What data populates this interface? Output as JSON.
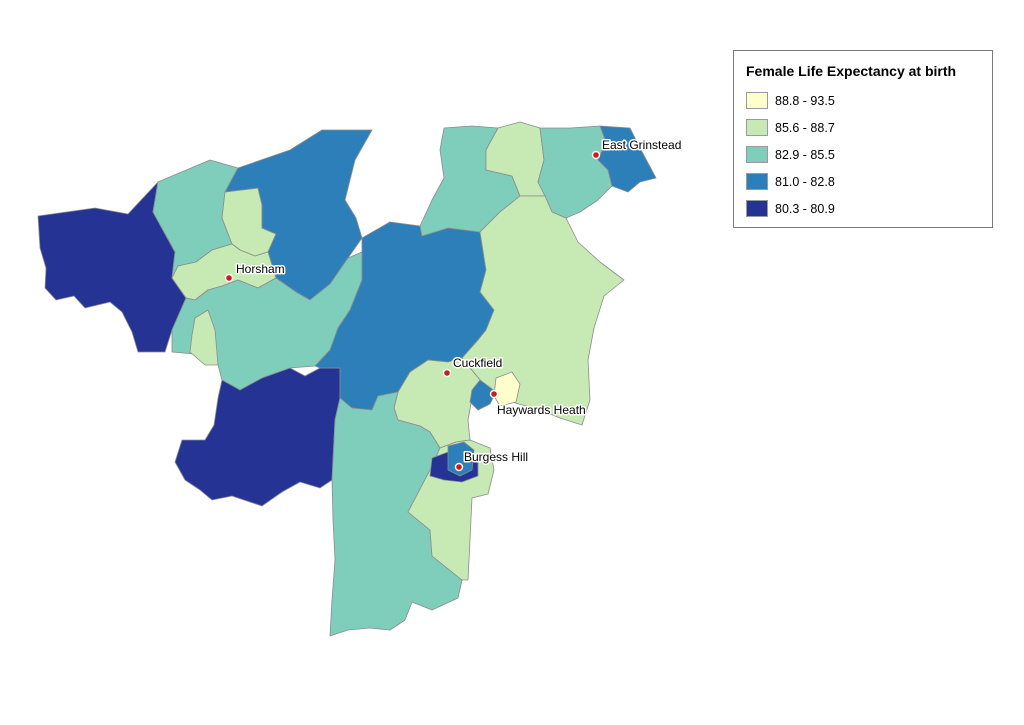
{
  "legend": {
    "title": "Female Life Expectancy at birth",
    "classes": [
      {
        "range": "88.8 - 93.5",
        "color": "#ffffcc"
      },
      {
        "range": "85.6 - 88.7",
        "color": "#c7e9b4"
      },
      {
        "range": "82.9 - 85.5",
        "color": "#7fcdbb"
      },
      {
        "range": "81.0 - 82.8",
        "color": "#2c7fb8"
      },
      {
        "range": "80.3 - 80.9",
        "color": "#253494"
      }
    ]
  },
  "towns": [
    {
      "name": "Horsham"
    },
    {
      "name": "East Grinstead"
    },
    {
      "name": "Cuckfield"
    },
    {
      "name": "Haywards Heath"
    },
    {
      "name": "Burgess Hill"
    }
  ]
}
